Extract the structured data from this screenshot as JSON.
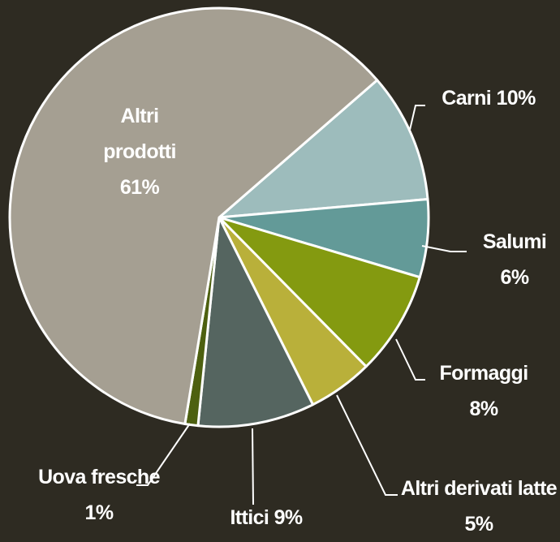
{
  "chart_data": {
    "type": "pie",
    "categories": [
      "Carni",
      "Salumi",
      "Formaggi",
      "Altri derivati latte",
      "Ittici",
      "Uova fresche",
      "Altri prodotti"
    ],
    "values": [
      10,
      6,
      8,
      5,
      9,
      1,
      61
    ],
    "value_labels": [
      "10%",
      "6%",
      "8%",
      "5%",
      "9%",
      "1%",
      "61%"
    ],
    "colors": [
      "#9dbcbc",
      "#639a98",
      "#849a10",
      "#b9b03a",
      "#556560",
      "#4d6010",
      "#a59f92"
    ]
  }
}
